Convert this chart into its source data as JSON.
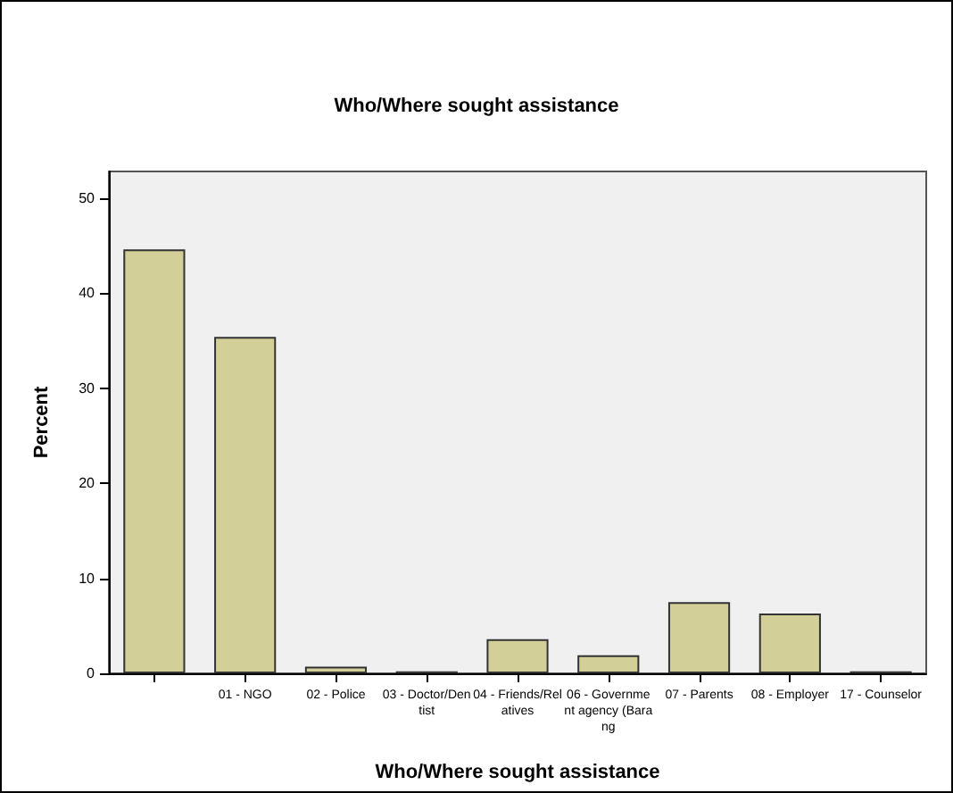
{
  "chart_data": {
    "type": "bar",
    "title": "Who/Where sought assistance",
    "xlabel": "Who/Where sought assistance",
    "ylabel": "Percent",
    "categories": [
      null,
      "01 - NGO",
      "02 - Police",
      "03 - Doctor/Dentist",
      "04 - Friends/Relatives",
      "06 - Government agency (Barang",
      "07 - Parents",
      "08 - Employer",
      "17 - Counselor"
    ],
    "values": [
      44.6,
      35.4,
      0.7,
      0.2,
      3.6,
      1.9,
      7.5,
      6.3,
      0.2
    ],
    "color": "#d3cf98",
    "ylim": [
      0,
      52.8
    ],
    "yticks": [
      0,
      10,
      20,
      30,
      40,
      50
    ],
    "grid": false
  }
}
